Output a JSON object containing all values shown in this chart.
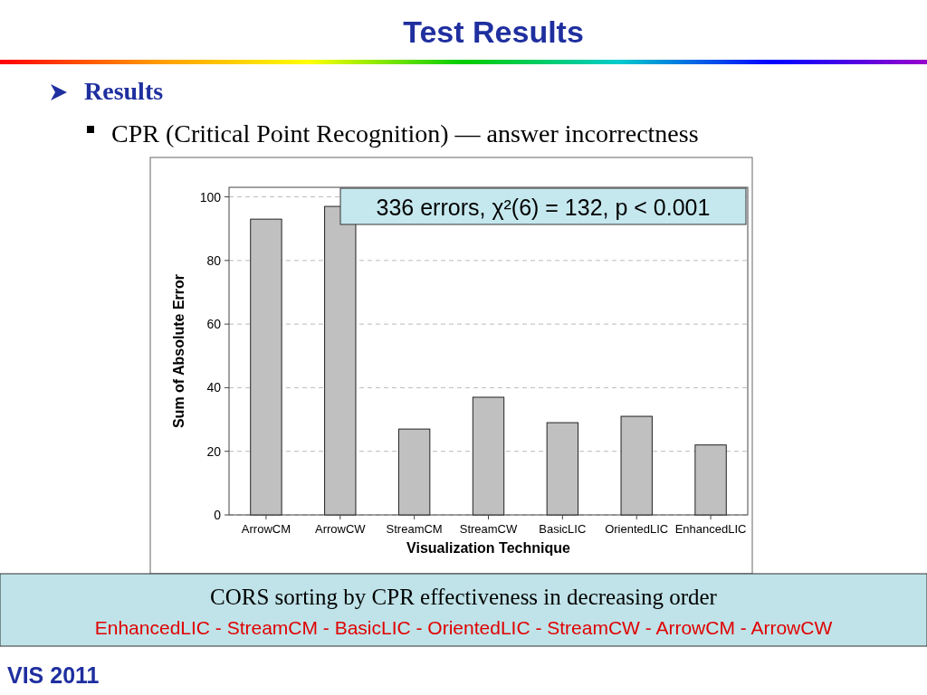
{
  "chart_data": {
    "type": "bar",
    "title": "Test Results",
    "subtitle": "Results",
    "xlabel": "Visualization Technique",
    "ylabel": "Sum of Absolute Error",
    "categories": [
      "ArrowCM",
      "ArrowCW",
      "StreamCM",
      "StreamCW",
      "BasicLIC",
      "OrientedLIC",
      "EnhancedLIC"
    ],
    "values": [
      93,
      97,
      27,
      37,
      29,
      31,
      22
    ],
    "color": "#c0c0c0",
    "ylim": [
      0,
      103
    ],
    "yticks": [
      0,
      20,
      40,
      60,
      80,
      100
    ],
    "grid": "y",
    "annotations": [
      "CPR (Critical Point Recognition) — answer incorrectness",
      "336 errors, χ²(6) = 132, p < 0.001",
      "CORS sorting by CPR effectiveness in decreasing order",
      "EnhancedLIC - StreamCM - BasicLIC - OrientedLIC - StreamCW - ArrowCM - ArrowCW",
      "VIS 2011"
    ]
  }
}
